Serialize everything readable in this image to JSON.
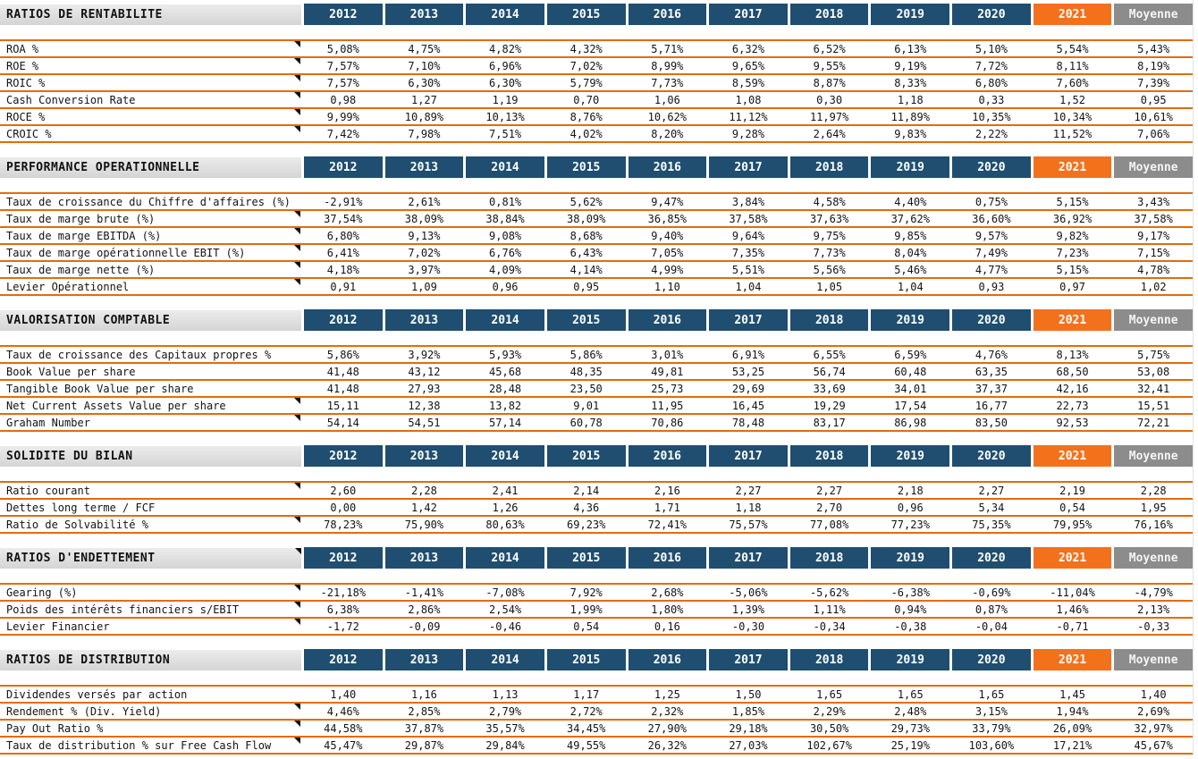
{
  "colors": {
    "year_header_bg": "#1F4E70",
    "current_year_bg": "#F4711C",
    "average_bg": "#8C8C8C",
    "row_border": "#E36C0A",
    "section_label_bg": "#D9D9D9",
    "header_text": "#FFFFFF",
    "cell_text": "#141414"
  },
  "columns": [
    {
      "label": "2012",
      "variant": "year"
    },
    {
      "label": "2013",
      "variant": "year"
    },
    {
      "label": "2014",
      "variant": "year"
    },
    {
      "label": "2015",
      "variant": "year"
    },
    {
      "label": "2016",
      "variant": "year"
    },
    {
      "label": "2017",
      "variant": "year"
    },
    {
      "label": "2018",
      "variant": "year"
    },
    {
      "label": "2019",
      "variant": "year"
    },
    {
      "label": "2020",
      "variant": "year"
    },
    {
      "label": "2021",
      "variant": "current"
    },
    {
      "label": "Moyenne",
      "variant": "average"
    }
  ],
  "sections": [
    {
      "title": "RATIOS DE RENTABILITE",
      "title_marker": false,
      "rows": [
        {
          "label": "ROA %",
          "marker": true,
          "values": [
            "5,08%",
            "4,75%",
            "4,82%",
            "4,32%",
            "5,71%",
            "6,32%",
            "6,52%",
            "6,13%",
            "5,10%",
            "5,54%",
            "5,43%"
          ]
        },
        {
          "label": "ROE %",
          "marker": true,
          "values": [
            "7,57%",
            "7,10%",
            "6,96%",
            "7,02%",
            "8,99%",
            "9,65%",
            "9,55%",
            "9,19%",
            "7,72%",
            "8,11%",
            "8,19%"
          ]
        },
        {
          "label": "ROIC %",
          "marker": true,
          "values": [
            "7,57%",
            "6,30%",
            "6,30%",
            "5,79%",
            "7,73%",
            "8,59%",
            "8,87%",
            "8,33%",
            "6,80%",
            "7,60%",
            "7,39%"
          ]
        },
        {
          "label": "Cash Conversion Rate",
          "marker": true,
          "values": [
            "0,98",
            "1,27",
            "1,19",
            "0,70",
            "1,06",
            "1,08",
            "0,30",
            "1,18",
            "0,33",
            "1,52",
            "0,95"
          ]
        },
        {
          "label": "ROCE %",
          "marker": true,
          "values": [
            "9,99%",
            "10,89%",
            "10,13%",
            "8,76%",
            "10,62%",
            "11,12%",
            "11,97%",
            "11,89%",
            "10,35%",
            "10,34%",
            "10,61%"
          ]
        },
        {
          "label": "CROIC %",
          "marker": true,
          "values": [
            "7,42%",
            "7,98%",
            "7,51%",
            "4,02%",
            "8,20%",
            "9,28%",
            "2,64%",
            "9,83%",
            "2,22%",
            "11,52%",
            "7,06%"
          ]
        }
      ]
    },
    {
      "title": "PERFORMANCE OPERATIONNELLE",
      "title_marker": false,
      "rows": [
        {
          "label": "Taux de croissance du Chiffre d'affaires (%)",
          "marker": false,
          "values": [
            "-2,91%",
            "2,61%",
            "0,81%",
            "5,62%",
            "9,47%",
            "3,84%",
            "4,58%",
            "4,40%",
            "0,75%",
            "5,15%",
            "3,43%"
          ]
        },
        {
          "label": "Taux de marge brute (%)",
          "marker": true,
          "values": [
            "37,54%",
            "38,09%",
            "38,84%",
            "38,09%",
            "36,85%",
            "37,58%",
            "37,63%",
            "37,62%",
            "36,60%",
            "36,92%",
            "37,58%"
          ]
        },
        {
          "label": "Taux de marge EBITDA (%)",
          "marker": true,
          "values": [
            "6,80%",
            "9,13%",
            "9,08%",
            "8,68%",
            "9,40%",
            "9,64%",
            "9,75%",
            "9,85%",
            "9,57%",
            "9,82%",
            "9,17%"
          ]
        },
        {
          "label": "Taux de marge opérationnelle EBIT (%)",
          "marker": true,
          "values": [
            "6,41%",
            "7,02%",
            "6,76%",
            "6,43%",
            "7,05%",
            "7,35%",
            "7,73%",
            "8,04%",
            "7,49%",
            "7,23%",
            "7,15%"
          ]
        },
        {
          "label": "Taux de marge nette (%)",
          "marker": true,
          "values": [
            "4,18%",
            "3,97%",
            "4,09%",
            "4,14%",
            "4,99%",
            "5,51%",
            "5,56%",
            "5,46%",
            "4,77%",
            "5,15%",
            "4,78%"
          ]
        },
        {
          "label": "Levier Opérationnel",
          "marker": true,
          "values": [
            "0,91",
            "1,09",
            "0,96",
            "0,95",
            "1,10",
            "1,04",
            "1,05",
            "1,04",
            "0,93",
            "0,97",
            "1,02"
          ]
        }
      ]
    },
    {
      "title": "VALORISATION COMPTABLE",
      "title_marker": false,
      "rows": [
        {
          "label": "Taux de croissance des Capitaux propres %",
          "marker": false,
          "values": [
            "5,86%",
            "3,92%",
            "5,93%",
            "5,86%",
            "3,01%",
            "6,91%",
            "6,55%",
            "6,59%",
            "4,76%",
            "8,13%",
            "5,75%"
          ]
        },
        {
          "label": "Book Value per share",
          "marker": false,
          "values": [
            "41,48",
            "43,12",
            "45,68",
            "48,35",
            "49,81",
            "53,25",
            "56,74",
            "60,48",
            "63,35",
            "68,50",
            "53,08"
          ]
        },
        {
          "label": "Tangible Book Value per share",
          "marker": false,
          "values": [
            "41,48",
            "27,93",
            "28,48",
            "23,50",
            "25,73",
            "29,69",
            "33,69",
            "34,01",
            "37,37",
            "42,16",
            "32,41"
          ]
        },
        {
          "label": "Net Current Assets Value per share",
          "marker": true,
          "values": [
            "15,11",
            "12,38",
            "13,82",
            "9,01",
            "11,95",
            "16,45",
            "19,29",
            "17,54",
            "16,77",
            "22,73",
            "15,51"
          ]
        },
        {
          "label": "Graham Number",
          "marker": true,
          "values": [
            "54,14",
            "54,51",
            "57,14",
            "60,78",
            "70,86",
            "78,48",
            "83,17",
            "86,98",
            "83,50",
            "92,53",
            "72,21"
          ]
        }
      ]
    },
    {
      "title": "SOLIDITE DU BILAN",
      "title_marker": false,
      "rows": [
        {
          "label": "Ratio courant",
          "marker": true,
          "values": [
            "2,60",
            "2,28",
            "2,41",
            "2,14",
            "2,16",
            "2,27",
            "2,27",
            "2,18",
            "2,27",
            "2,19",
            "2,28"
          ]
        },
        {
          "label": "Dettes long terme / FCF",
          "marker": false,
          "values": [
            "0,00",
            "1,42",
            "1,26",
            "4,36",
            "1,71",
            "1,18",
            "2,70",
            "0,96",
            "5,34",
            "0,54",
            "1,95"
          ]
        },
        {
          "label": "Ratio de Solvabilité %",
          "marker": true,
          "values": [
            "78,23%",
            "75,90%",
            "80,63%",
            "69,23%",
            "72,41%",
            "75,57%",
            "77,08%",
            "77,23%",
            "75,35%",
            "79,95%",
            "76,16%"
          ]
        }
      ]
    },
    {
      "title": "RATIOS D'ENDETTEMENT",
      "title_marker": true,
      "rows": [
        {
          "label": "Gearing (%)",
          "marker": true,
          "values": [
            "-21,18%",
            "-1,41%",
            "-7,08%",
            "7,92%",
            "2,68%",
            "-5,06%",
            "-5,62%",
            "-6,38%",
            "-0,69%",
            "-11,04%",
            "-4,79%"
          ]
        },
        {
          "label": "Poids des intérêts financiers s/EBIT",
          "marker": true,
          "values": [
            "6,38%",
            "2,86%",
            "2,54%",
            "1,99%",
            "1,80%",
            "1,39%",
            "1,11%",
            "0,94%",
            "0,87%",
            "1,46%",
            "2,13%"
          ]
        },
        {
          "label": "Levier Financier",
          "marker": true,
          "values": [
            "-1,72",
            "-0,09",
            "-0,46",
            "0,54",
            "0,16",
            "-0,30",
            "-0,34",
            "-0,38",
            "-0,04",
            "-0,71",
            "-0,33"
          ]
        }
      ]
    },
    {
      "title": "RATIOS DE DISTRIBUTION",
      "title_marker": false,
      "rows": [
        {
          "label": "Dividendes versés par action",
          "marker": false,
          "values": [
            "1,40",
            "1,16",
            "1,13",
            "1,17",
            "1,25",
            "1,50",
            "1,65",
            "1,65",
            "1,65",
            "1,45",
            "1,40"
          ]
        },
        {
          "label": "Rendement % (Div. Yield)",
          "marker": true,
          "values": [
            "4,46%",
            "2,85%",
            "2,79%",
            "2,72%",
            "2,32%",
            "1,85%",
            "2,29%",
            "2,48%",
            "3,15%",
            "1,94%",
            "2,69%"
          ]
        },
        {
          "label": "Pay Out Ratio %",
          "marker": true,
          "values": [
            "44,58%",
            "37,87%",
            "35,57%",
            "34,45%",
            "27,90%",
            "29,18%",
            "30,50%",
            "29,73%",
            "33,79%",
            "26,09%",
            "32,97%"
          ]
        },
        {
          "label": "Taux de distribution % sur Free Cash Flow",
          "marker": true,
          "values": [
            "45,47%",
            "29,87%",
            "29,84%",
            "49,55%",
            "26,32%",
            "27,03%",
            "102,67%",
            "25,19%",
            "103,60%",
            "17,21%",
            "45,67%"
          ]
        }
      ]
    }
  ]
}
